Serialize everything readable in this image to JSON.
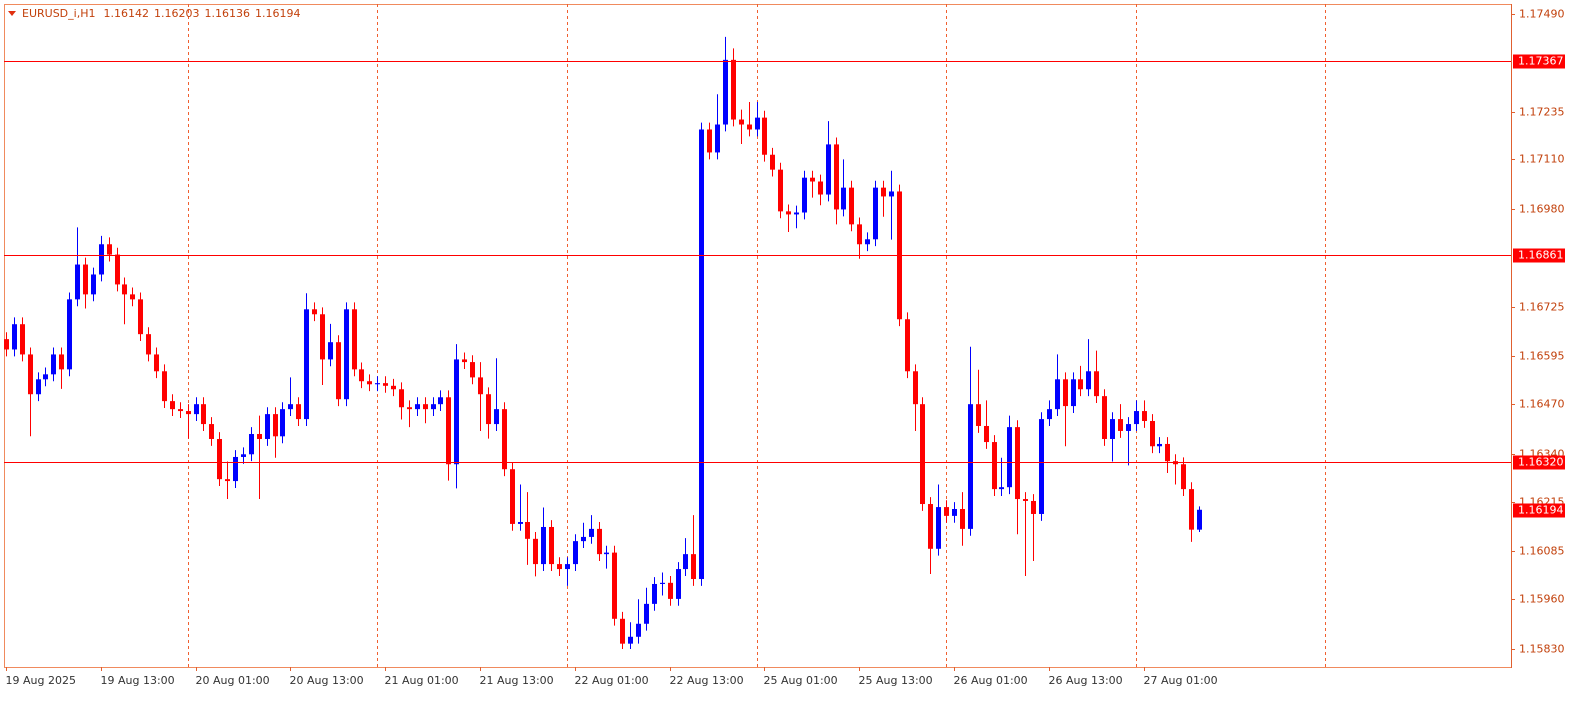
{
  "chart_data": {
    "type": "candlestick",
    "title": "EURUSD_i,H1",
    "up_color": "#0000ff",
    "down_color": "#ff0000",
    "hline_color": "#ff0000",
    "open": [
      1.1664,
      1.16613,
      1.16679,
      1.166,
      1.16496,
      1.16535,
      1.16548,
      1.166,
      1.16561,
      1.16744,
      1.16835,
      1.16757,
      1.16809,
      1.16888,
      1.16861,
      1.16783,
      1.16757,
      1.16744,
      1.16653,
      1.166,
      1.16556,
      1.16478,
      1.16457,
      1.16452,
      1.16444,
      1.1647,
      1.16418,
      1.16379,
      1.16274,
      1.16269,
      1.16332,
      1.16339,
      1.16392,
      1.16379,
      1.16444,
      1.16386,
      1.16457,
      1.1647,
      1.16431,
      1.16718,
      1.16705,
      1.16587,
      1.16632,
      1.16483,
      1.16718,
      1.16561,
      1.1653,
      1.16522,
      1.16525,
      1.16518,
      1.16509,
      1.16462,
      1.16457,
      1.1647,
      1.16457,
      1.1647,
      1.16488,
      1.16313,
      1.16587,
      1.1658,
      1.1654,
      1.16496,
      1.16418,
      1.16457,
      1.163,
      1.16157,
      1.16162,
      1.16118,
      1.16052,
      1.16149,
      1.16052,
      1.16039,
      1.16052,
      1.16112,
      1.16123,
      1.16144,
      1.16078,
      1.16082,
      1.15909,
      1.15844,
      1.15862,
      1.15896,
      1.15948,
      1.16,
      1.16003,
      1.15961,
      1.16039,
      1.16078,
      1.16013,
      1.17188,
      1.17128,
      1.17201,
      1.1737,
      1.17214,
      1.17201,
      1.17188,
      1.17219,
      1.17122,
      1.17083,
      1.16974,
      1.16966,
      1.16971,
      1.17062,
      1.17052,
      1.17018,
      1.17149,
      1.16979,
      1.17036,
      1.1694,
      1.16888,
      1.16901,
      1.17036,
      1.17013,
      1.17026,
      1.16692,
      1.16556,
      1.1647,
      1.16209,
      1.16092,
      1.16201,
      1.16178,
      1.16196,
      1.16144,
      1.1647,
      1.16413,
      1.16371,
      1.16248,
      1.16253,
      1.1641,
      1.16222,
      1.16217,
      1.16183,
      1.16431,
      1.16457,
      1.16535,
      1.16465,
      1.16535,
      1.16509,
      1.16556,
      1.16491,
      1.16379,
      1.16431,
      1.164,
      1.16418,
      1.16452,
      1.16426,
      1.1636,
      1.16366,
      1.16321,
      1.16313,
      1.16248,
      1.16142
    ],
    "high": [
      1.16658,
      1.16697,
      1.16697,
      1.16618,
      1.16553,
      1.16566,
      1.16618,
      1.16618,
      1.16762,
      1.16932,
      1.16853,
      1.16827,
      1.1691,
      1.16906,
      1.16879,
      1.16801,
      1.16775,
      1.16762,
      1.16671,
      1.16618,
      1.16574,
      1.16496,
      1.16475,
      1.1647,
      1.16488,
      1.16488,
      1.16436,
      1.16397,
      1.1632,
      1.1635,
      1.16357,
      1.1641,
      1.1644,
      1.16462,
      1.16462,
      1.16475,
      1.1654,
      1.16488,
      1.1676,
      1.16736,
      1.16723,
      1.1668,
      1.1665,
      1.16736,
      1.16736,
      1.16579,
      1.16548,
      1.16543,
      1.16543,
      1.16536,
      1.16527,
      1.1648,
      1.16488,
      1.16488,
      1.16488,
      1.16506,
      1.16506,
      1.16627,
      1.16605,
      1.16598,
      1.1658,
      1.16514,
      1.1659,
      1.16475,
      1.16318,
      1.1626,
      1.1624,
      1.16136,
      1.162,
      1.16167,
      1.1607,
      1.1607,
      1.1613,
      1.1616,
      1.1618,
      1.16162,
      1.161,
      1.161,
      1.15927,
      1.159,
      1.1596,
      1.1599,
      1.16018,
      1.1603,
      1.16021,
      1.16057,
      1.1612,
      1.1618,
      1.17206,
      1.17206,
      1.1728,
      1.1743,
      1.174,
      1.1724,
      1.1726,
      1.1726,
      1.17237,
      1.1714,
      1.17101,
      1.16992,
      1.16989,
      1.1708,
      1.1708,
      1.1707,
      1.1721,
      1.17167,
      1.1711,
      1.17054,
      1.16958,
      1.16919,
      1.17054,
      1.17054,
      1.1708,
      1.17044,
      1.1671,
      1.16574,
      1.16488,
      1.16227,
      1.1626,
      1.16219,
      1.16214,
      1.1624,
      1.1662,
      1.1656,
      1.1648,
      1.16389,
      1.1633,
      1.1644,
      1.16428,
      1.1624,
      1.16235,
      1.16449,
      1.1648,
      1.166,
      1.16553,
      1.16553,
      1.1657,
      1.1664,
      1.1661,
      1.16509,
      1.16449,
      1.1647,
      1.16436,
      1.1648,
      1.1648,
      1.16444,
      1.16384,
      1.16384,
      1.16339,
      1.16331,
      1.16266,
      1.16203
    ],
    "low": [
      1.16595,
      1.16595,
      1.16582,
      1.16386,
      1.16478,
      1.16517,
      1.1653,
      1.1651,
      1.16543,
      1.16726,
      1.1672,
      1.16739,
      1.16791,
      1.16843,
      1.16765,
      1.16679,
      1.16726,
      1.16635,
      1.16582,
      1.16538,
      1.1646,
      1.16439,
      1.16434,
      1.1638,
      1.16426,
      1.164,
      1.16361,
      1.16256,
      1.16222,
      1.16251,
      1.16314,
      1.16321,
      1.16222,
      1.16361,
      1.1633,
      1.16368,
      1.16439,
      1.16413,
      1.16413,
      1.16687,
      1.1652,
      1.16569,
      1.16465,
      1.16465,
      1.16543,
      1.16512,
      1.16504,
      1.16504,
      1.165,
      1.16491,
      1.1643,
      1.1641,
      1.16439,
      1.1642,
      1.16439,
      1.16452,
      1.1627,
      1.1625,
      1.16562,
      1.16522,
      1.164,
      1.1638,
      1.164,
      1.16282,
      1.16139,
      1.16139,
      1.1605,
      1.1602,
      1.16034,
      1.16034,
      1.16021,
      1.15995,
      1.16034,
      1.16094,
      1.16105,
      1.1606,
      1.1604,
      1.15891,
      1.1583,
      1.1583,
      1.15844,
      1.15878,
      1.1593,
      1.1597,
      1.15943,
      1.15943,
      1.16021,
      1.15995,
      1.15995,
      1.1711,
      1.1711,
      1.17183,
      1.17196,
      1.1715,
      1.1717,
      1.1717,
      1.17104,
      1.17065,
      1.16956,
      1.1692,
      1.1693,
      1.16953,
      1.1701,
      1.1699,
      1.17,
      1.1694,
      1.16961,
      1.16922,
      1.1685,
      1.1687,
      1.16883,
      1.1696,
      1.169,
      1.16674,
      1.16538,
      1.164,
      1.16191,
      1.16026,
      1.16074,
      1.1616,
      1.1616,
      1.161,
      1.16126,
      1.16395,
      1.16353,
      1.1623,
      1.1623,
      1.16235,
      1.1613,
      1.16021,
      1.1606,
      1.16165,
      1.16413,
      1.16439,
      1.1636,
      1.16447,
      1.16491,
      1.16491,
      1.16473,
      1.16361,
      1.1632,
      1.16382,
      1.1631,
      1.164,
      1.16408,
      1.16342,
      1.16342,
      1.1629,
      1.1626,
      1.1623,
      1.1611,
      1.16136
    ],
    "close": [
      1.16613,
      1.16679,
      1.166,
      1.16496,
      1.16535,
      1.16548,
      1.166,
      1.16561,
      1.16744,
      1.16835,
      1.16757,
      1.16809,
      1.16888,
      1.16861,
      1.16783,
      1.16757,
      1.16744,
      1.16653,
      1.166,
      1.16556,
      1.16478,
      1.16457,
      1.16452,
      1.16444,
      1.1647,
      1.16418,
      1.16379,
      1.16274,
      1.16269,
      1.16332,
      1.16339,
      1.16392,
      1.16379,
      1.16444,
      1.16386,
      1.16457,
      1.1647,
      1.16431,
      1.16718,
      1.16705,
      1.16587,
      1.16632,
      1.16483,
      1.16718,
      1.16561,
      1.1653,
      1.16522,
      1.16525,
      1.16518,
      1.16509,
      1.16462,
      1.16457,
      1.1647,
      1.16457,
      1.1647,
      1.16488,
      1.16313,
      1.16587,
      1.1658,
      1.1654,
      1.16496,
      1.16418,
      1.16457,
      1.163,
      1.16157,
      1.16162,
      1.16118,
      1.16052,
      1.16149,
      1.16052,
      1.16039,
      1.16052,
      1.16112,
      1.16123,
      1.16144,
      1.16078,
      1.16082,
      1.15909,
      1.15844,
      1.15862,
      1.15896,
      1.15948,
      1.16,
      1.16003,
      1.15961,
      1.16039,
      1.16078,
      1.16013,
      1.17188,
      1.17128,
      1.17201,
      1.1737,
      1.17214,
      1.17201,
      1.17188,
      1.17219,
      1.17122,
      1.17083,
      1.16974,
      1.16966,
      1.16971,
      1.17062,
      1.17052,
      1.17018,
      1.17149,
      1.16979,
      1.17036,
      1.1694,
      1.16888,
      1.16901,
      1.17036,
      1.17013,
      1.17026,
      1.16692,
      1.16556,
      1.1647,
      1.16209,
      1.16092,
      1.16201,
      1.16178,
      1.16196,
      1.16144,
      1.1647,
      1.16413,
      1.16371,
      1.16248,
      1.16253,
      1.1641,
      1.16222,
      1.16217,
      1.16183,
      1.16431,
      1.16457,
      1.16535,
      1.16465,
      1.16535,
      1.16509,
      1.16556,
      1.16491,
      1.16379,
      1.16431,
      1.164,
      1.16418,
      1.16452,
      1.16426,
      1.1636,
      1.16366,
      1.16321,
      1.16313,
      1.16248,
      1.16142,
      1.16194
    ],
    "xlim": [
      -0.25,
      190.5
    ],
    "xticks": [
      {
        "value": 0,
        "label": "19 Aug 2025"
      },
      {
        "value": 12,
        "label": "19 Aug 13:00"
      },
      {
        "value": 24,
        "label": "20 Aug 01:00"
      },
      {
        "value": 36,
        "label": "20 Aug 13:00"
      },
      {
        "value": 48,
        "label": "21 Aug 01:00"
      },
      {
        "value": 60,
        "label": "21 Aug 13:00"
      },
      {
        "value": 72,
        "label": "22 Aug 01:00"
      },
      {
        "value": 84,
        "label": "22 Aug 13:00"
      },
      {
        "value": 96,
        "label": "25 Aug 01:00"
      },
      {
        "value": 108,
        "label": "25 Aug 13:00"
      },
      {
        "value": 120,
        "label": "26 Aug 01:00"
      },
      {
        "value": 132,
        "label": "26 Aug 13:00"
      },
      {
        "value": 144,
        "label": "27 Aug 01:00"
      }
    ],
    "xgrid": [
      23,
      47,
      71,
      95,
      119,
      143,
      167
    ],
    "ylim": [
      1.15783,
      1.17516
    ],
    "yticks": [
      {
        "value": 1.1749,
        "label": "1.17490"
      },
      {
        "value": 1.17235,
        "label": "1.17235"
      },
      {
        "value": 1.1711,
        "label": "1.17110"
      },
      {
        "value": 1.1698,
        "label": "1.16980"
      },
      {
        "value": 1.16725,
        "label": "1.16725"
      },
      {
        "value": 1.16595,
        "label": "1.16595"
      },
      {
        "value": 1.1647,
        "label": "1.16470"
      },
      {
        "value": 1.1634,
        "label": "1.16340"
      },
      {
        "value": 1.16215,
        "label": "1.16215"
      },
      {
        "value": 1.16085,
        "label": "1.16085"
      },
      {
        "value": 1.1596,
        "label": "1.15960"
      },
      {
        "value": 1.1583,
        "label": "1.15830"
      }
    ],
    "hlines": [
      {
        "value": 1.17367,
        "label": "1.17367"
      },
      {
        "value": 1.16861,
        "label": "1.16861"
      },
      {
        "value": 1.1632,
        "label": "1.16320"
      }
    ],
    "last_price": {
      "value": 1.16194,
      "label": "1.16194"
    }
  }
}
